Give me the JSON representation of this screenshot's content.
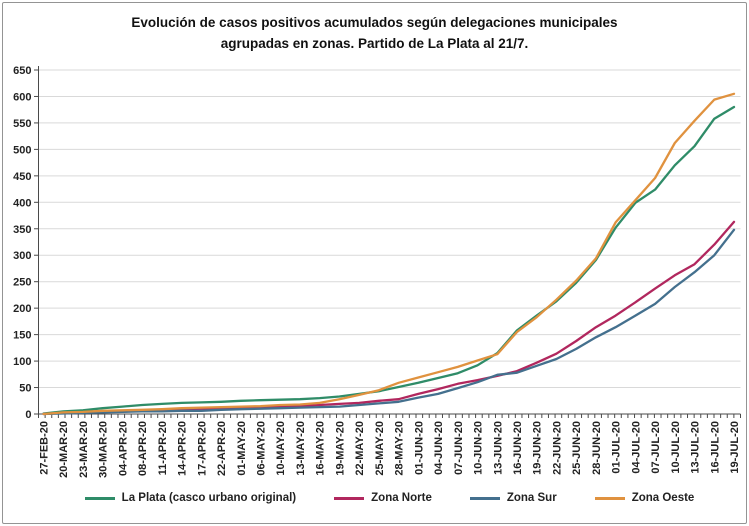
{
  "chart_data": {
    "type": "line",
    "title": "Evolución de casos positivos acumulados según delegaciones municipales agrupadas en zonas. Partido de La Plata al 21/7.",
    "title_lines": [
      "Evolución de casos positivos acumulados según delegaciones municipales",
      "agrupadas en zonas. Partido de La Plata al 21/7."
    ],
    "xlabel": "",
    "ylabel": "",
    "ylim": [
      0,
      650
    ],
    "y_axis": {
      "min": 0,
      "max": 650,
      "step": 50
    },
    "grid": "horizontal-gridlines",
    "legend_position": "bottom",
    "categories": [
      "27-FEB-20",
      "20-MAR-20",
      "23-MAR-20",
      "30-MAR-20",
      "04-APR-20",
      "08-APR-20",
      "11-APR-20",
      "14-APR-20",
      "17-APR-20",
      "22-APR-20",
      "01-MAY-20",
      "06-MAY-20",
      "10-MAY-20",
      "13-MAY-20",
      "16-MAY-20",
      "19-MAY-20",
      "22-MAY-20",
      "25-MAY-20",
      "28-MAY-20",
      "01-JUN-20",
      "04-JUN-20",
      "07-JUN-20",
      "10-JUN-20",
      "13-JUN-20",
      "16-JUN-20",
      "19-JUN-20",
      "22-JUN-20",
      "25-JUN-20",
      "28-JUN-20",
      "01-JUL-20",
      "04-JUL-20",
      "07-JUL-20",
      "10-JUL-20",
      "13-JUL-20",
      "16-JUL-20",
      "19-JUL-20"
    ],
    "series": [
      {
        "name": "La Plata (casco urbano original)",
        "color": "#2F8C68",
        "values": [
          1,
          5,
          7,
          11,
          14,
          17,
          19,
          21,
          22,
          23,
          25,
          26,
          27,
          28,
          30,
          33,
          38,
          43,
          51,
          59,
          68,
          77,
          92,
          115,
          158,
          186,
          213,
          248,
          291,
          352,
          399,
          424,
          470,
          506,
          558,
          580
        ]
      },
      {
        "name": "Zona Norte",
        "color": "#B1275E",
        "values": [
          0,
          2,
          3,
          5,
          6,
          7,
          8,
          9,
          10,
          11,
          12,
          13,
          14,
          15,
          17,
          19,
          21,
          25,
          28,
          38,
          47,
          57,
          64,
          72,
          81,
          97,
          114,
          138,
          164,
          186,
          211,
          237,
          262,
          283,
          320,
          363
        ]
      },
      {
        "name": "Zona Sur",
        "color": "#44708E",
        "values": [
          0,
          1,
          2,
          3,
          4,
          5,
          5,
          6,
          6,
          8,
          9,
          10,
          11,
          12,
          13,
          14,
          17,
          20,
          23,
          31,
          38,
          49,
          60,
          74,
          78,
          91,
          104,
          123,
          145,
          164,
          186,
          208,
          240,
          268,
          300,
          348
        ]
      },
      {
        "name": "Zona Oeste",
        "color": "#E0923F",
        "values": [
          0,
          3,
          4,
          6,
          7,
          8,
          9,
          11,
          12,
          13,
          14,
          15,
          17,
          18,
          21,
          28,
          36,
          45,
          59,
          69,
          79,
          89,
          101,
          113,
          155,
          183,
          216,
          252,
          294,
          362,
          404,
          446,
          512,
          554,
          594,
          605
        ]
      }
    ]
  }
}
